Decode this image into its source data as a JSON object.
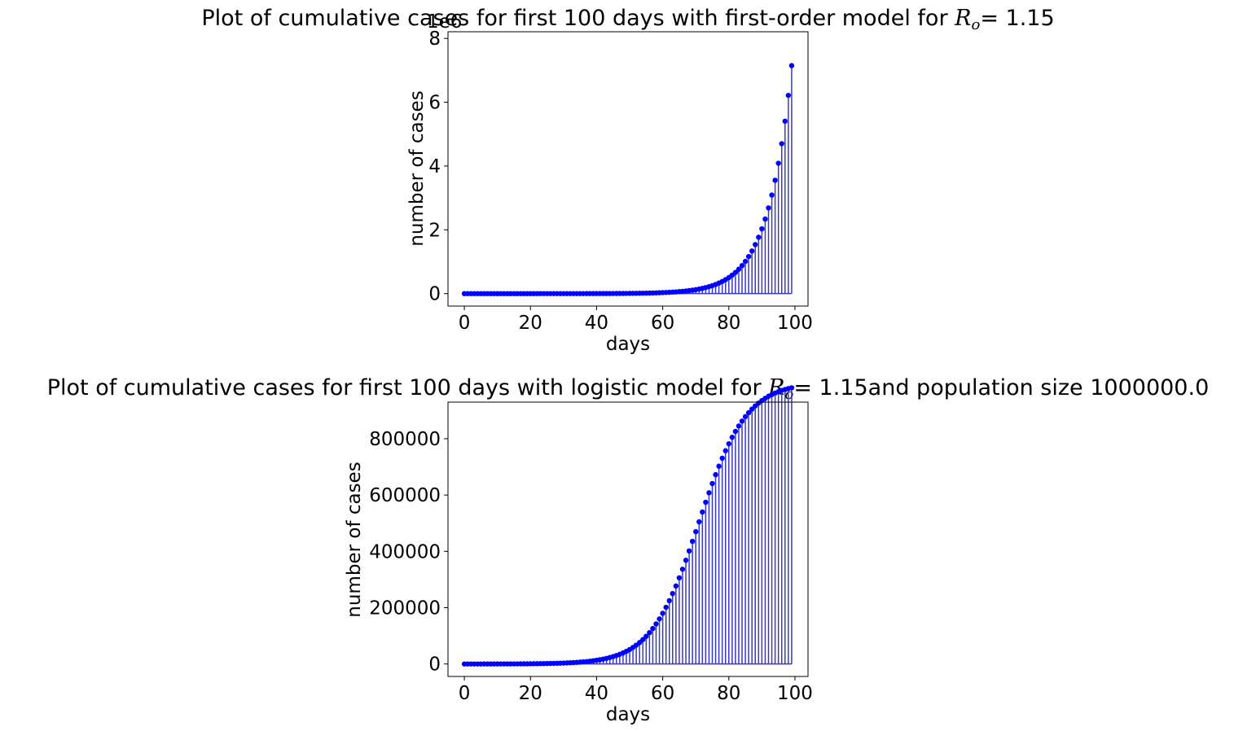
{
  "colors": {
    "marker": "#0000ff",
    "stem": "#3838c8",
    "frame": "#000000"
  },
  "chart_data": [
    {
      "type": "stem",
      "title_prefix": "Plot of cumulative cases for first 100 days with first-order model for ",
      "title_math_var": "R",
      "title_math_sub": "o",
      "title_math_eq": "=",
      "title_value": " 1.15",
      "title_suffix": "",
      "xlabel": "days",
      "ylabel": "number of cases",
      "offset_text": "1e6",
      "xticks": [
        "0",
        "20",
        "40",
        "60",
        "80",
        "100"
      ],
      "xtick_values": [
        0,
        20,
        40,
        60,
        80,
        100
      ],
      "yticks": [
        "0",
        "2",
        "4",
        "6",
        "8"
      ],
      "ytick_values": [
        0,
        2000000,
        4000000,
        6000000,
        8000000
      ],
      "xlim": [
        -4.95,
        103.95
      ],
      "ylim": [
        -391000,
        8210000
      ],
      "model": "exponential",
      "r0": 1.15,
      "initial": 7,
      "days": 100,
      "grid": false
    },
    {
      "type": "stem",
      "title_prefix": "Plot of cumulative cases for first 100 days with logistic model for ",
      "title_math_var": "R",
      "title_math_sub": "o",
      "title_math_eq": "=",
      "title_value": " 1.15",
      "title_suffix": "and population size 1000000.0",
      "xlabel": "days",
      "ylabel": "number of cases",
      "offset_text": "",
      "xticks": [
        "0",
        "20",
        "40",
        "60",
        "80",
        "100"
      ],
      "xtick_values": [
        0,
        20,
        40,
        60,
        80,
        100
      ],
      "yticks": [
        "0",
        "200000",
        "400000",
        "600000",
        "800000"
      ],
      "ytick_values": [
        0,
        200000,
        400000,
        600000,
        800000
      ],
      "xlim": [
        -4.95,
        103.95
      ],
      "ylim": [
        -44300,
        929900
      ],
      "model": "logistic",
      "r0": 1.15,
      "initial": 50,
      "population": 1000000,
      "days": 100,
      "grid": false
    }
  ]
}
